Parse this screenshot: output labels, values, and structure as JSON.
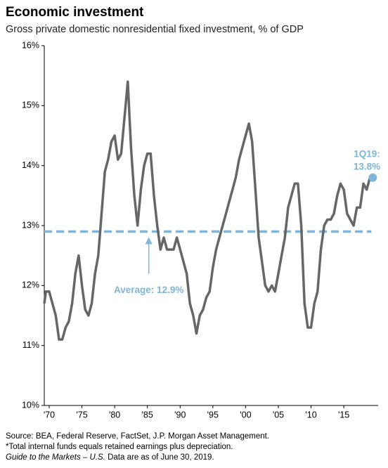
{
  "chart_data": {
    "type": "line",
    "title": "Economic investment",
    "subtitle": "Gross private domestic nonresidential fixed investment, % of GDP",
    "x": [
      1969.25,
      1969.5,
      1970,
      1970.5,
      1971,
      1971.5,
      1972,
      1972.5,
      1973,
      1973.5,
      1974,
      1974.5,
      1975,
      1975.5,
      1976,
      1976.5,
      1977,
      1977.5,
      1978,
      1978.5,
      1979,
      1979.5,
      1980,
      1980.5,
      1981,
      1981.5,
      1982,
      1982.5,
      1983,
      1983.5,
      1984,
      1984.5,
      1985,
      1985.5,
      1986,
      1986.5,
      1987,
      1987.5,
      1988,
      1988.5,
      1989,
      1989.5,
      1990,
      1990.5,
      1991,
      1991.5,
      1992,
      1992.5,
      1993,
      1993.5,
      1994,
      1994.5,
      1995,
      1995.5,
      1996,
      1996.5,
      1997,
      1997.5,
      1998,
      1998.5,
      1999,
      1999.5,
      2000,
      2000.5,
      2001,
      2001.5,
      2002,
      2002.5,
      2003,
      2003.5,
      2004,
      2004.5,
      2005,
      2005.5,
      2006,
      2006.5,
      2007,
      2007.5,
      2008,
      2008.5,
      2009,
      2009.5,
      2010,
      2010.5,
      2011,
      2011.5,
      2012,
      2012.5,
      2013,
      2013.5,
      2014,
      2014.5,
      2015,
      2015.5,
      2016,
      2016.5,
      2017,
      2017.5,
      2018,
      2018.5,
      2019
    ],
    "series": [
      {
        "color": "#666666",
        "values": [
          11.7,
          11.9,
          11.9,
          11.7,
          11.5,
          11.1,
          11.1,
          11.3,
          11.4,
          11.7,
          12.2,
          12.5,
          12.0,
          11.6,
          11.5,
          11.7,
          12.2,
          12.5,
          13.2,
          13.9,
          14.1,
          14.4,
          14.5,
          14.1,
          14.2,
          14.8,
          15.4,
          14.3,
          13.5,
          13.0,
          13.6,
          14.0,
          14.2,
          14.2,
          13.5,
          13.0,
          12.6,
          12.8,
          12.6,
          12.6,
          12.6,
          12.8,
          12.6,
          12.4,
          12.2,
          11.7,
          11.5,
          11.2,
          11.5,
          11.6,
          11.8,
          11.9,
          12.3,
          12.6,
          12.8,
          13.0,
          13.2,
          13.4,
          13.6,
          13.8,
          14.1,
          14.3,
          14.5,
          14.7,
          14.4,
          13.6,
          12.8,
          12.4,
          12.0,
          11.9,
          12.0,
          11.9,
          12.2,
          12.5,
          12.8,
          13.3,
          13.5,
          13.7,
          13.7,
          13.0,
          11.7,
          11.3,
          11.3,
          11.7,
          11.9,
          12.6,
          13.0,
          13.1,
          13.1,
          13.2,
          13.5,
          13.7,
          13.6,
          13.2,
          13.1,
          13.0,
          13.3,
          13.3,
          13.7,
          13.6,
          13.8
        ]
      }
    ],
    "average": 12.9,
    "average_color": "#7fb5d6",
    "annotations": [
      "Average: 12.9%",
      "1Q19:",
      "13.8%"
    ],
    "xlim": [
      1969.25,
      2020.25
    ],
    "xticks": [
      {
        "value": 1970,
        "label": "'70"
      },
      {
        "value": 1975,
        "label": "'75"
      },
      {
        "value": 1980,
        "label": "'80"
      },
      {
        "value": 1985,
        "label": "'85"
      },
      {
        "value": 1990,
        "label": "'90"
      },
      {
        "value": 1995,
        "label": "'95"
      },
      {
        "value": 2000,
        "label": "'00"
      },
      {
        "value": 2005,
        "label": "'05"
      },
      {
        "value": 2010,
        "label": "'10"
      },
      {
        "value": 2015,
        "label": "'15"
      }
    ],
    "ylim": [
      10,
      16
    ],
    "yticks": [
      {
        "value": 10,
        "label": "10%"
      },
      {
        "value": 11,
        "label": "11%"
      },
      {
        "value": 12,
        "label": "12%"
      },
      {
        "value": 13,
        "label": "13%"
      },
      {
        "value": 14,
        "label": "14%"
      },
      {
        "value": 15,
        "label": "15%"
      },
      {
        "value": 16,
        "label": "16%"
      }
    ],
    "footnotes": [
      "Source: BEA, Federal Reserve, FactSet, J.P. Morgan Asset Management.",
      "*Total internal funds equals retained earnings plus depreciation."
    ],
    "footnote_italic": "Guide to the Markets – U.S.",
    "footnote_date": " Data are as of June 30, 2019."
  }
}
